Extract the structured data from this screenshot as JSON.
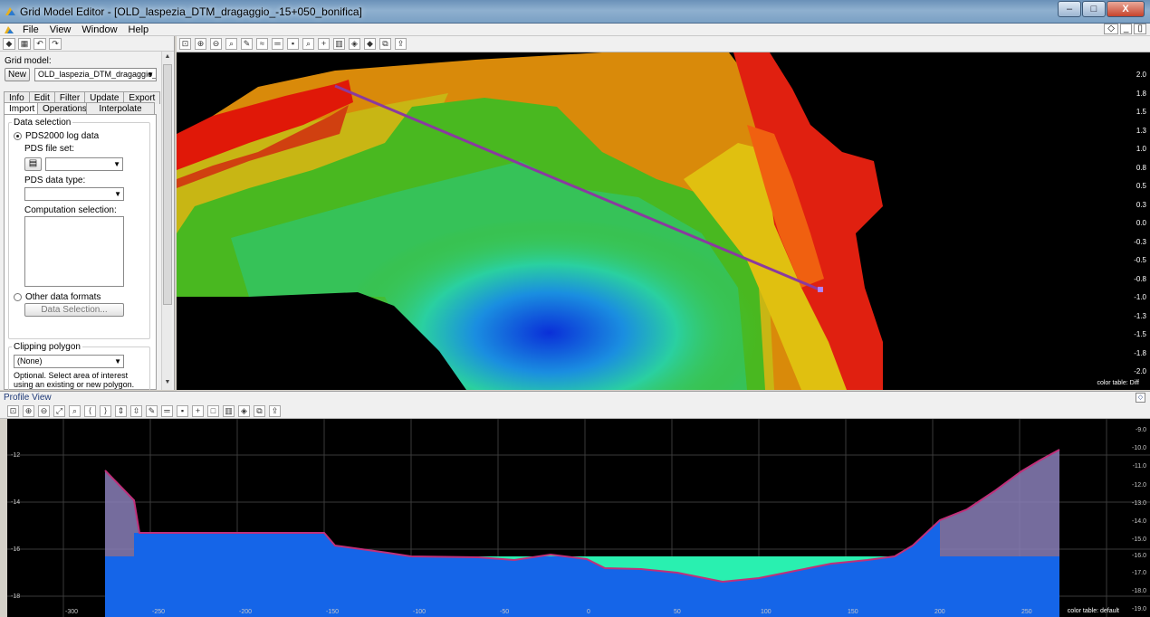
{
  "window": {
    "title": "Grid Model Editor - [OLD_laspezia_DTM_dragaggio_-15+050_bonifica]",
    "minimize": "–",
    "maximize": "□",
    "close": "X"
  },
  "menu": {
    "items": [
      "File",
      "View",
      "Window",
      "Help"
    ],
    "mdi_buttons": [
      "◇",
      "_",
      "▯"
    ]
  },
  "left_panel": {
    "grid_model_label": "Grid model:",
    "new_button": "New",
    "grid_model_value": "OLD_laspezia_DTM_dragaggio_-15-",
    "tabs_top": [
      "Info",
      "Edit",
      "Filter",
      "Update",
      "Export"
    ],
    "tabs_bottom": [
      "Import",
      "Operations",
      "Interpolate"
    ],
    "active_tab": "Import",
    "data_selection_label": "Data selection",
    "radio_pds2000": "PDS2000 log data",
    "pds_file_set_label": "PDS file set:",
    "pds_data_type_label": "PDS data type:",
    "computation_selection_label": "Computation selection:",
    "radio_other": "Other data formats",
    "data_selection_button": "Data Selection...",
    "clipping_polygon_label": "Clipping polygon",
    "clipping_polygon_value": "(None)",
    "clipping_hint_1": "Optional. Select area of interest",
    "clipping_hint_2": "using an existing or new polygon."
  },
  "view3d": {
    "color_scale": [
      "2.0",
      "1.8",
      "1.5",
      "1.3",
      "1.0",
      "0.8",
      "0.5",
      "0.3",
      "0.0",
      "-0.3",
      "-0.5",
      "-0.8",
      "-1.0",
      "-1.3",
      "-1.5",
      "-1.8",
      "-2.0"
    ],
    "color_table_label": "color table: Diff"
  },
  "profile": {
    "title": "Profile View",
    "left_axis": [
      "-12",
      "-14",
      "-16",
      "-18"
    ],
    "right_axis": [
      "-9.0",
      "-10.0",
      "-11.0",
      "-12.0",
      "-13.0",
      "-14.0",
      "-15.0",
      "-16.0",
      "-17.0",
      "-18.0",
      "-19.0"
    ],
    "x_axis": [
      "-300",
      "-250",
      "-200",
      "-150",
      "-100",
      "-50",
      "0",
      "50",
      "100",
      "150",
      "200",
      "250"
    ],
    "color_table_label": "color table: default"
  },
  "colors": {
    "profile_fill_blue": "#1565e8",
    "profile_fill_cyan": "#29f0b0",
    "profile_line": "#c0307a",
    "title_bar": "#7aa0c4"
  }
}
